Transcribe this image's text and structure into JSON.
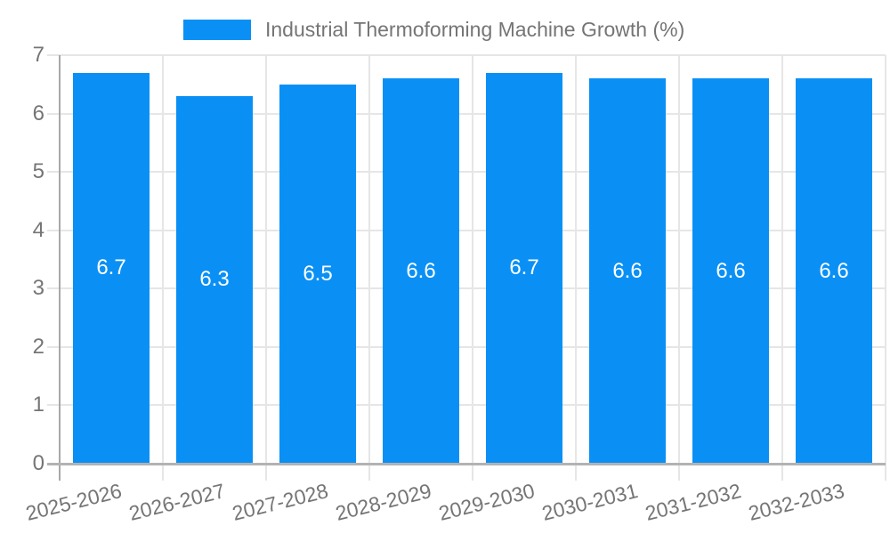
{
  "chart_data": {
    "type": "bar",
    "title": "Industrial Thermoforming Machine Growth (%)",
    "categories": [
      "2025-2026",
      "2026-2027",
      "2027-2028",
      "2028-2029",
      "2029-2030",
      "2030-2031",
      "2031-2032",
      "2032-2033"
    ],
    "series": [
      {
        "name": "Industrial Thermoforming Machine Growth (%)",
        "values": [
          6.7,
          6.3,
          6.5,
          6.6,
          6.7,
          6.6,
          6.6,
          6.6
        ]
      }
    ],
    "value_labels": [
      "6.7",
      "6.3",
      "6.5",
      "6.6",
      "6.7",
      "6.6",
      "6.6",
      "6.6"
    ],
    "xlabel": "",
    "ylabel": "",
    "ylim": [
      0,
      7
    ],
    "yticks": [
      0,
      1,
      2,
      3,
      4,
      5,
      6,
      7
    ],
    "grid": true,
    "legend_position": "top",
    "bar_color": "#0a90f5",
    "value_label_color": "#ffffff",
    "axis_text_color": "#757575",
    "gridline_color": "#e6e6e6",
    "baseline_color": "#b3b3b3",
    "axisline_color": "#a8a8a8",
    "background_color": "#ffffff"
  }
}
